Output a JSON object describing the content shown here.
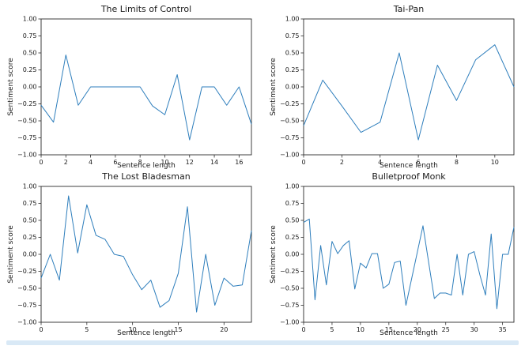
{
  "colors": {
    "line": "#2e7ebc",
    "spine": "#2b2b2b",
    "tick_text": "#1a1a1a",
    "bottom_rule": "#d9e9f6",
    "background": "#ffffff"
  },
  "bottom_rule": {
    "description": "light-blue horizontal rule under figure"
  },
  "chart_data": [
    {
      "type": "line",
      "title": "The Limits of Control",
      "xlabel": "Sentence length",
      "ylabel": "Sentiment score",
      "x": [
        0,
        1,
        2,
        3,
        4,
        5,
        6,
        7,
        8,
        9,
        10,
        11,
        12,
        13,
        14,
        15,
        16,
        17
      ],
      "values": [
        -0.27,
        -0.52,
        0.47,
        -0.27,
        0.0,
        0.0,
        0.0,
        0.0,
        0.0,
        -0.28,
        -0.41,
        0.18,
        -0.78,
        0.0,
        0.0,
        -0.27,
        0.0,
        -0.55
      ],
      "xticks": [
        0,
        2,
        4,
        6,
        8,
        10,
        12,
        14,
        16
      ],
      "yticks": [
        1.0,
        0.75,
        0.5,
        0.25,
        0.0,
        -0.25,
        -0.5,
        -0.75,
        -1.0
      ],
      "xlim": [
        0,
        17
      ],
      "ylim": [
        -1.0,
        1.0
      ],
      "grid": false,
      "legend": null
    },
    {
      "type": "line",
      "title": "Tai-Pan",
      "xlabel": "Sentence length",
      "ylabel": "Sentiment score",
      "x": [
        0,
        1,
        2,
        3,
        4,
        5,
        6,
        7,
        8,
        9,
        10,
        11
      ],
      "values": [
        -0.57,
        0.1,
        -0.28,
        -0.67,
        -0.52,
        0.5,
        -0.78,
        0.32,
        -0.2,
        0.4,
        0.62,
        0.0
      ],
      "xticks": [
        0,
        2,
        4,
        6,
        8,
        10
      ],
      "yticks": [
        1.0,
        0.75,
        0.5,
        0.25,
        0.0,
        -0.25,
        -0.5,
        -0.75,
        -1.0
      ],
      "xlim": [
        0,
        11
      ],
      "ylim": [
        -1.0,
        1.0
      ],
      "grid": false,
      "legend": null
    },
    {
      "type": "line",
      "title": "The Lost Bladesman",
      "xlabel": "Sentence length",
      "ylabel": "Sentiment score",
      "x": [
        0,
        1,
        2,
        3,
        4,
        5,
        6,
        7,
        8,
        9,
        10,
        11,
        12,
        13,
        14,
        15,
        16,
        17,
        18,
        19,
        20,
        21,
        22,
        23
      ],
      "values": [
        -0.35,
        0.0,
        -0.38,
        0.86,
        0.02,
        0.73,
        0.28,
        0.22,
        0.0,
        -0.03,
        -0.3,
        -0.52,
        -0.38,
        -0.78,
        -0.68,
        -0.28,
        0.7,
        -0.85,
        0.0,
        -0.75,
        -0.35,
        -0.47,
        -0.45,
        0.35
      ],
      "xticks": [
        0,
        5,
        10,
        15,
        20
      ],
      "yticks": [
        1.0,
        0.75,
        0.5,
        0.25,
        0.0,
        -0.25,
        -0.5,
        -0.75,
        -1.0
      ],
      "xlim": [
        0,
        23
      ],
      "ylim": [
        -1.0,
        1.0
      ],
      "grid": false,
      "legend": null
    },
    {
      "type": "line",
      "title": "Bulletproof Monk",
      "xlabel": "Sentence length",
      "ylabel": "Sentiment score",
      "x": [
        0,
        1,
        2,
        3,
        4,
        5,
        6,
        7,
        8,
        9,
        10,
        11,
        12,
        13,
        14,
        15,
        16,
        17,
        18,
        19,
        20,
        21,
        22,
        23,
        24,
        25,
        26,
        27,
        28,
        29,
        30,
        31,
        32,
        33,
        34,
        35,
        36,
        37
      ],
      "values": [
        0.47,
        0.52,
        -0.67,
        0.13,
        -0.45,
        0.19,
        0.01,
        0.13,
        0.2,
        -0.51,
        -0.13,
        -0.2,
        0.01,
        0.01,
        -0.5,
        -0.44,
        -0.12,
        -0.1,
        -0.75,
        -0.36,
        0.03,
        0.42,
        -0.12,
        -0.65,
        -0.57,
        -0.57,
        -0.6,
        0.0,
        -0.6,
        0.0,
        0.04,
        -0.3,
        -0.6,
        0.3,
        -0.8,
        0.0,
        0.0,
        0.4
      ],
      "xticks": [
        0,
        5,
        10,
        15,
        20,
        25,
        30,
        35
      ],
      "yticks": [
        1.0,
        0.75,
        0.5,
        0.25,
        0.0,
        -0.25,
        -0.5,
        -0.75,
        -1.0
      ],
      "xlim": [
        0,
        37
      ],
      "ylim": [
        -1.0,
        1.0
      ],
      "grid": false,
      "legend": null
    }
  ]
}
